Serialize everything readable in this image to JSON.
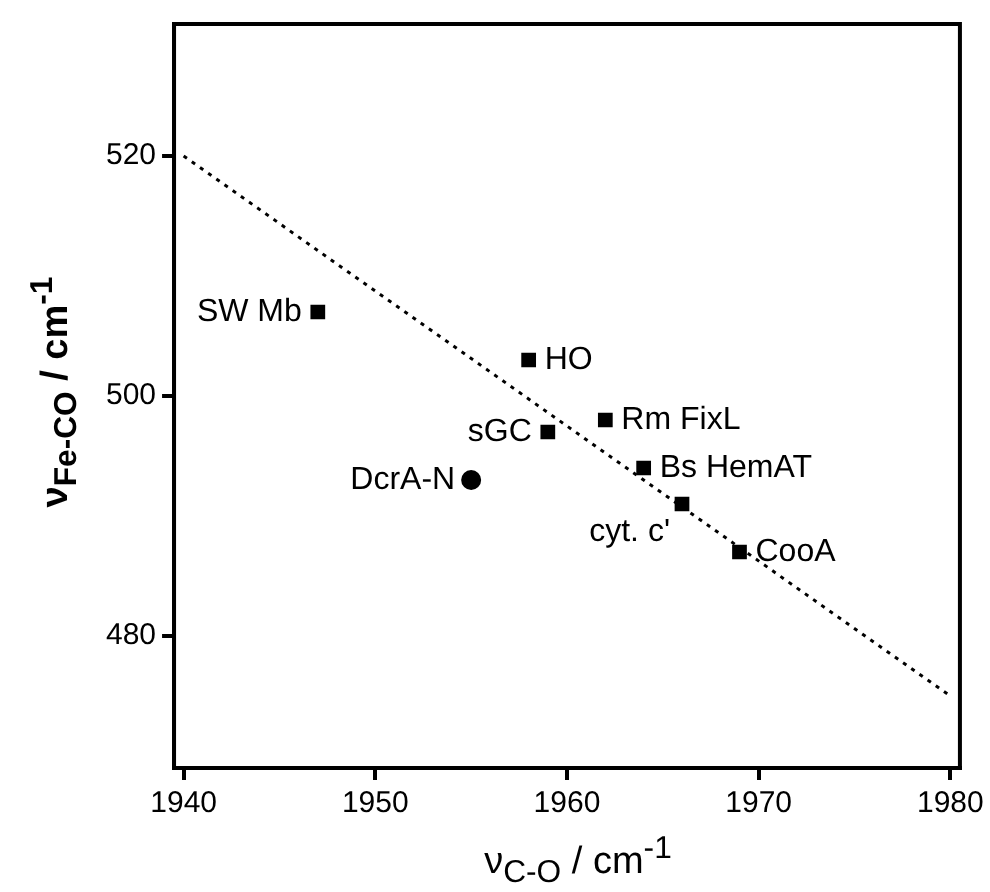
{
  "chart_data": {
    "type": "scatter",
    "xlabel": "ν$_{C-O}$ / cm$^{-1}$",
    "ylabel": "ν$_{Fe-CO}$ / cm$^{-1}$",
    "xlim": [
      1939.5,
      1980.5
    ],
    "xticks": [
      1940,
      1950,
      1960,
      1970,
      1980
    ],
    "ylim": [
      469,
      531
    ],
    "yticks": [
      480,
      500,
      520
    ],
    "grid": false,
    "legend": false,
    "series": [
      {
        "marker": "square",
        "color": "#000000",
        "x": [
          1947,
          1958,
          1962,
          1959,
          1964,
          1966,
          1969
        ],
        "values": [
          507,
          503,
          498,
          497,
          494,
          491,
          487
        ]
      },
      {
        "marker": "circle",
        "color": "#000000",
        "x": [
          1955
        ],
        "values": [
          493
        ]
      },
      {
        "type": "line",
        "marker": "none",
        "line_style": "dotted",
        "color": "#000000",
        "x": [
          1940,
          1980
        ],
        "values": [
          520,
          475
        ]
      }
    ],
    "annotations": [
      {
        "text": "SW Mb",
        "x": 1947,
        "y": 507
      },
      {
        "text": "HO",
        "x": 1958,
        "y": 503
      },
      {
        "text": "Rm FixL",
        "x": 1962,
        "y": 498
      },
      {
        "text": "sGC",
        "x": 1959,
        "y": 497
      },
      {
        "text": "DcrA-N",
        "x": 1955,
        "y": 493
      },
      {
        "text": "Bs HemAT",
        "x": 1964,
        "y": 494
      },
      {
        "text": "cyt. c'",
        "x": 1966,
        "y": 491
      },
      {
        "text": "CooA",
        "x": 1969,
        "y": 487
      }
    ]
  }
}
